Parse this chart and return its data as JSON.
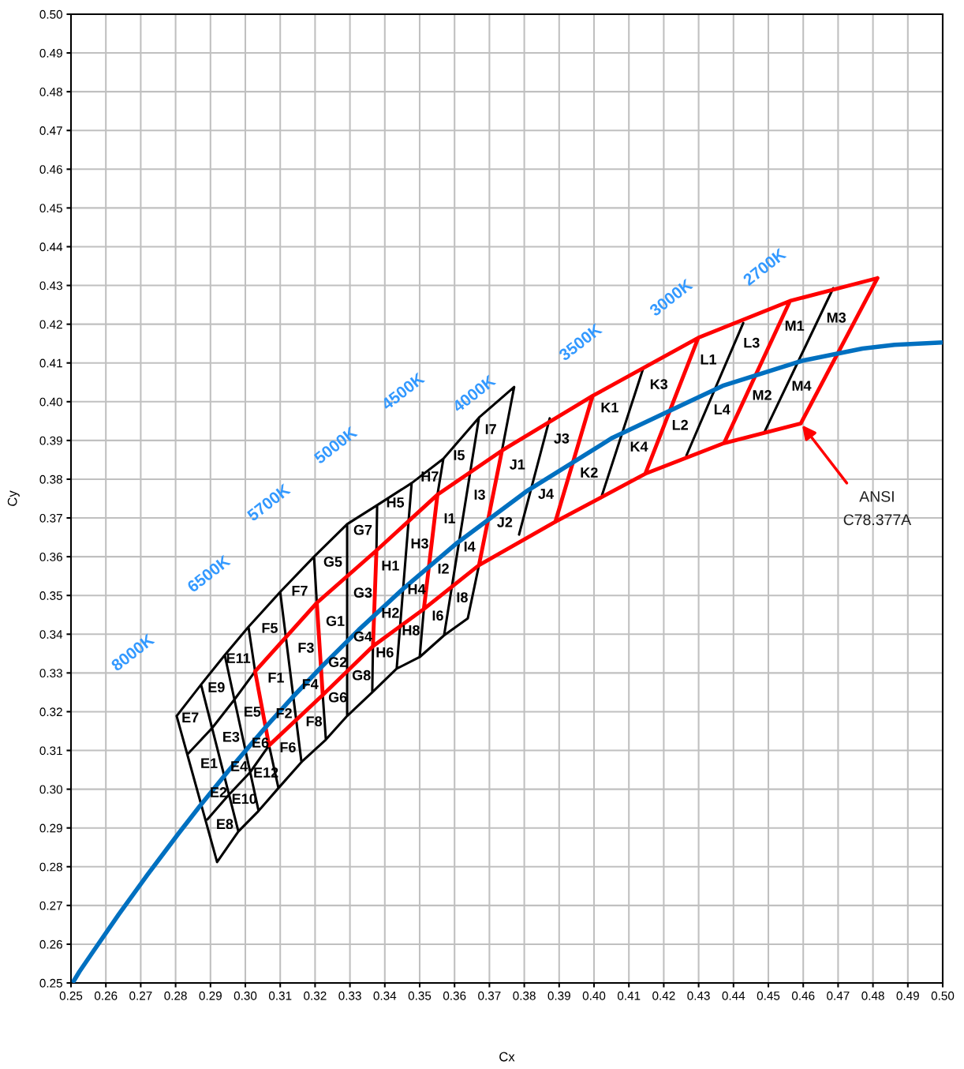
{
  "chart_data": {
    "type": "line",
    "xlabel": "Cx",
    "ylabel": "Cy",
    "xlim": [
      0.25,
      0.5
    ],
    "ylim": [
      0.25,
      0.5
    ],
    "xticks": [
      0.25,
      0.26,
      0.27,
      0.28,
      0.29,
      {
        "value": 0.3,
        "label": "0.30"
      },
      0.31,
      0.32,
      0.33,
      0.34,
      0.35,
      0.36,
      0.37,
      0.38,
      0.39,
      {
        "value": 0.4,
        "label": "0.40"
      },
      0.41,
      0.42,
      0.43,
      0.44,
      0.45,
      0.46,
      0.47,
      0.48,
      0.49,
      {
        "value": 0.5,
        "label": "0.50"
      }
    ],
    "yticks": [
      0.25,
      0.26,
      0.27,
      0.28,
      0.29,
      {
        "value": 0.3,
        "label": "0.30"
      },
      0.31,
      0.32,
      0.33,
      0.34,
      0.35,
      0.36,
      0.37,
      0.38,
      0.39,
      {
        "value": 0.4,
        "label": "0.40"
      },
      0.41,
      0.42,
      0.43,
      0.44,
      0.45,
      0.46,
      0.47,
      0.48,
      0.49,
      {
        "value": 0.5,
        "label": "0.50"
      }
    ],
    "grid": true,
    "series": [
      {
        "color": "#000000",
        "x": [
          0.2803,
          0.2873,
          0.2941,
          0.3009,
          0.31,
          0.3197,
          0.3292,
          0.3378,
          0.3477,
          0.3568,
          0.367,
          0.3771,
          0.3736,
          null,
          0.2803,
          0.2919,
          null,
          0.2835,
          0.2905,
          0.2971,
          0.3028,
          null,
          0.2891,
          0.2952,
          0.3014,
          0.3068,
          null,
          0.2919,
          0.298,
          0.3038,
          0.3095,
          0.3161,
          0.3231,
          0.3292,
          0.3364,
          0.3434,
          0.35,
          0.357,
          0.3638,
          0.367,
          null,
          0.2873,
          0.298,
          null,
          0.2941,
          0.3038,
          null,
          0.3009,
          0.3028,
          null,
          0.3068,
          0.3095,
          null,
          0.31,
          0.3161,
          null,
          0.3197,
          0.3205,
          null,
          0.3222,
          0.3231,
          null,
          0.3292,
          0.3292,
          null,
          0.3378,
          0.3376,
          null,
          0.3366,
          0.3364,
          null,
          0.3477,
          0.3434,
          null,
          0.3568,
          0.3551,
          null,
          0.3512,
          0.35,
          null,
          0.367,
          0.357,
          null,
          0.3873,
          0.3785,
          null,
          0.414,
          0.4023,
          null,
          0.4428,
          0.4265,
          null,
          0.4686,
          0.4489
        ],
        "values": [
          0.3189,
          0.327,
          0.3346,
          0.3419,
          0.3509,
          0.36,
          0.3684,
          0.3733,
          0.379,
          0.3853,
          0.3959,
          0.4038,
          0.3874,
          null,
          0.3189,
          0.2812,
          null,
          0.3091,
          0.3158,
          0.3234,
          0.3304,
          null,
          0.2922,
          0.2985,
          0.3044,
          0.3113,
          null,
          0.2812,
          0.2891,
          0.2944,
          0.3003,
          0.307,
          0.3128,
          0.3189,
          0.325,
          0.3311,
          0.3341,
          0.3397,
          0.3441,
          0.3578,
          null,
          0.327,
          0.2891,
          null,
          0.3346,
          0.2944,
          null,
          0.3419,
          0.3304,
          null,
          0.3113,
          0.3003,
          null,
          0.3509,
          0.307,
          null,
          0.36,
          0.3481,
          null,
          0.3243,
          0.3128,
          null,
          0.3684,
          0.3189,
          null,
          0.3733,
          0.3616,
          null,
          0.3369,
          0.325,
          null,
          0.379,
          0.3311,
          null,
          0.3853,
          0.376,
          null,
          0.3465,
          0.3341,
          null,
          0.3959,
          0.3397,
          null,
          0.3957,
          0.3657,
          null,
          0.4083,
          0.3759,
          null,
          0.4203,
          0.3861,
          null,
          0.4293,
          0.3922
        ]
      },
      {
        "color": "#ff0000",
        "x": [
          0.3028,
          0.3205,
          0.3376,
          0.3551,
          0.3736,
          0.3996,
          0.4299,
          0.4562,
          0.4813,
          null,
          0.3068,
          0.3222,
          0.3366,
          0.3512,
          0.367,
          0.3889,
          0.4147,
          0.4373,
          0.4593,
          null,
          0.3028,
          0.3068,
          null,
          0.3205,
          0.3222,
          null,
          0.3376,
          0.3366,
          null,
          0.3551,
          0.3512,
          null,
          0.3736,
          0.367,
          null,
          0.3996,
          0.3889,
          null,
          0.4299,
          0.4147,
          null,
          0.4562,
          0.4373,
          null,
          0.4813,
          0.4593
        ],
        "values": [
          0.3304,
          0.3481,
          0.3616,
          0.376,
          0.3874,
          0.4015,
          0.4165,
          0.426,
          0.4319,
          null,
          0.3113,
          0.3243,
          0.3369,
          0.3465,
          0.3578,
          0.369,
          0.3814,
          0.3893,
          0.3944,
          null,
          0.3304,
          0.3113,
          null,
          0.3481,
          0.3243,
          null,
          0.3616,
          0.3369,
          null,
          0.376,
          0.3465,
          null,
          0.3874,
          0.3578,
          null,
          0.4015,
          0.369,
          null,
          0.4165,
          0.3814,
          null,
          0.426,
          0.3893,
          null,
          0.4319,
          0.3944
        ]
      },
      {
        "color": "#0070c0",
        "x": [
          0.2508,
          0.2524,
          0.2565,
          0.2637,
          0.2719,
          0.2807,
          0.2869,
          0.2952,
          0.3064,
          0.3135,
          0.3221,
          0.3325,
          0.3451,
          0.3608,
          0.3805,
          0.4053,
          0.4369,
          0.4599,
          0.477,
          0.4862,
          0.5
        ],
        "values": [
          0.2505,
          0.2529,
          0.2583,
          0.2677,
          0.2779,
          0.2884,
          0.2956,
          0.3048,
          0.3166,
          0.3237,
          0.3318,
          0.3411,
          0.3516,
          0.3636,
          0.3768,
          0.3907,
          0.4041,
          0.4106,
          0.4137,
          0.4147,
          0.4153
        ]
      }
    ],
    "annotations": [
      "E7",
      "E9",
      "E11",
      "E1",
      "E3",
      "E5",
      "E2",
      "E4",
      "E6",
      "E8",
      "E10",
      "E12",
      "F5",
      "F7",
      "F1",
      "F3",
      "F2",
      "F4",
      "F6",
      "F8",
      "G5",
      "G7",
      "G1",
      "G3",
      "G2",
      "G4",
      "G6",
      "G8",
      "H5",
      "H7",
      "H1",
      "H3",
      "H2",
      "H4",
      "H6",
      "H8",
      "I5",
      "I7",
      "I1",
      "I3",
      "I2",
      "I4",
      "I6",
      "I8",
      "J1",
      "J3",
      "J2",
      "J4",
      "K1",
      "K3",
      "K2",
      "K4",
      "L1",
      "L3",
      "L2",
      "L4",
      "M1",
      "M3",
      "M2",
      "M4",
      "8000K",
      "6500K",
      "5700K",
      "5000K",
      "4500K",
      "4000K",
      "3500K",
      "3000K",
      "2700K",
      "ANSI\nC78.377A"
    ]
  }
}
